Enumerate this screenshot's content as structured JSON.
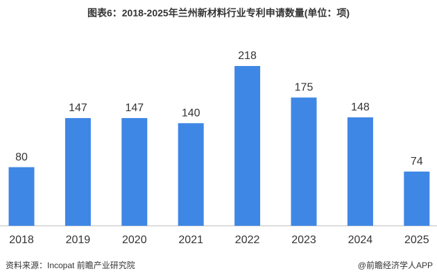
{
  "chart_data": {
    "type": "bar",
    "title": "图表6：2018-2025年兰州新材料行业专利申请数量(单位：项)",
    "categories": [
      "2018",
      "2019",
      "2020",
      "2021",
      "2022",
      "2023",
      "2024",
      "2025"
    ],
    "values": [
      80,
      147,
      147,
      140,
      218,
      175,
      148,
      74
    ],
    "color": "#3f87e5",
    "source": "资料来源：Incopat 前瞻产业研究院",
    "credit": "@前瞻经济学人APP"
  }
}
